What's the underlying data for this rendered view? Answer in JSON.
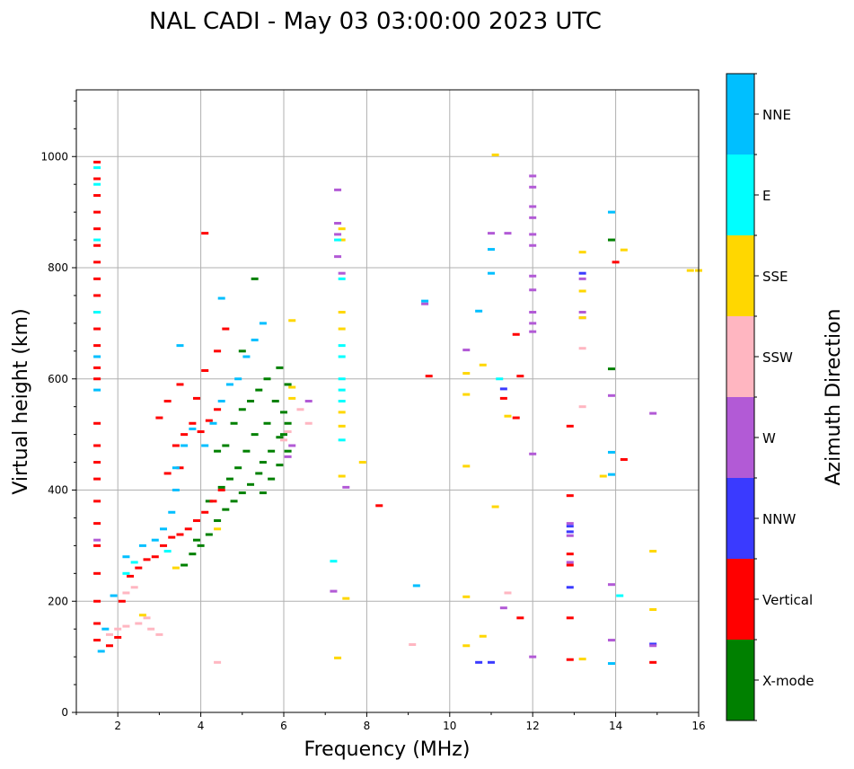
{
  "chart_data": {
    "type": "scatter",
    "title": "NAL CADI - May 03 03:00:00 2023 UTC",
    "xlabel": "Frequency (MHz)",
    "ylabel": "Virtual height (km)",
    "xlim": [
      1,
      16
    ],
    "ylim": [
      0,
      1120
    ],
    "xticks": [
      2,
      4,
      6,
      8,
      10,
      12,
      14,
      16
    ],
    "yticks": [
      0,
      200,
      400,
      600,
      800,
      1000
    ],
    "grid": true,
    "colorbar": {
      "label": "Azimuth Direction",
      "position": "right",
      "categories": [
        {
          "name": "X-mode",
          "color": "#008000"
        },
        {
          "name": "Vertical",
          "color": "#ff0000"
        },
        {
          "name": "NNW",
          "color": "#3a3aff"
        },
        {
          "name": "W",
          "color": "#b25ad6"
        },
        {
          "name": "SSW",
          "color": "#ffb6c1"
        },
        {
          "name": "SSE",
          "color": "#ffd700"
        },
        {
          "name": "E",
          "color": "#00ffff"
        },
        {
          "name": "NNE",
          "color": "#00bfff"
        }
      ]
    },
    "series": [
      {
        "name": "X-mode",
        "points": [
          [
            3.6,
            265
          ],
          [
            3.8,
            285
          ],
          [
            4.0,
            300
          ],
          [
            4.2,
            320
          ],
          [
            4.4,
            345
          ],
          [
            4.6,
            365
          ],
          [
            4.8,
            380
          ],
          [
            5.0,
            395
          ],
          [
            5.2,
            410
          ],
          [
            5.4,
            430
          ],
          [
            5.5,
            450
          ],
          [
            5.7,
            470
          ],
          [
            5.9,
            495
          ],
          [
            6.1,
            520
          ],
          [
            4.6,
            480
          ],
          [
            4.8,
            520
          ],
          [
            5.0,
            545
          ],
          [
            5.2,
            560
          ],
          [
            5.4,
            580
          ],
          [
            5.6,
            600
          ],
          [
            5.8,
            560
          ],
          [
            6.0,
            540
          ],
          [
            5.3,
            500
          ],
          [
            5.1,
            470
          ],
          [
            4.9,
            440
          ],
          [
            4.7,
            420
          ],
          [
            4.5,
            405
          ],
          [
            5.5,
            395
          ],
          [
            5.7,
            420
          ],
          [
            5.9,
            445
          ],
          [
            6.1,
            470
          ],
          [
            6.1,
            590
          ],
          [
            5.9,
            620
          ],
          [
            5.3,
            780
          ],
          [
            5.0,
            650
          ],
          [
            4.4,
            470
          ],
          [
            3.9,
            310
          ],
          [
            4.2,
            380
          ],
          [
            5.6,
            520
          ],
          [
            6.0,
            500
          ],
          [
            13.9,
            850
          ],
          [
            13.9,
            618
          ]
        ]
      },
      {
        "name": "Vertical",
        "points": [
          [
            1.5,
            990
          ],
          [
            1.5,
            960
          ],
          [
            1.5,
            930
          ],
          [
            1.5,
            900
          ],
          [
            1.5,
            870
          ],
          [
            1.5,
            840
          ],
          [
            1.5,
            810
          ],
          [
            1.5,
            780
          ],
          [
            1.5,
            750
          ],
          [
            1.5,
            720
          ],
          [
            1.5,
            690
          ],
          [
            1.5,
            660
          ],
          [
            1.5,
            620
          ],
          [
            1.5,
            600
          ],
          [
            1.5,
            520
          ],
          [
            1.5,
            480
          ],
          [
            1.5,
            450
          ],
          [
            1.5,
            420
          ],
          [
            1.5,
            380
          ],
          [
            1.5,
            340
          ],
          [
            1.5,
            300
          ],
          [
            1.5,
            250
          ],
          [
            1.5,
            200
          ],
          [
            1.5,
            160
          ],
          [
            1.5,
            130
          ],
          [
            1.8,
            120
          ],
          [
            2.0,
            135
          ],
          [
            2.1,
            200
          ],
          [
            2.3,
            245
          ],
          [
            2.5,
            260
          ],
          [
            2.7,
            275
          ],
          [
            2.9,
            280
          ],
          [
            3.1,
            300
          ],
          [
            3.3,
            315
          ],
          [
            3.5,
            320
          ],
          [
            3.7,
            330
          ],
          [
            3.9,
            345
          ],
          [
            4.1,
            360
          ],
          [
            4.3,
            380
          ],
          [
            4.5,
            400
          ],
          [
            3.4,
            480
          ],
          [
            3.6,
            500
          ],
          [
            3.8,
            520
          ],
          [
            4.0,
            505
          ],
          [
            4.2,
            525
          ],
          [
            4.4,
            545
          ],
          [
            3.2,
            560
          ],
          [
            3.0,
            530
          ],
          [
            3.5,
            590
          ],
          [
            3.9,
            565
          ],
          [
            4.1,
            615
          ],
          [
            4.4,
            650
          ],
          [
            4.6,
            690
          ],
          [
            4.1,
            862
          ],
          [
            3.2,
            430
          ],
          [
            3.5,
            440
          ],
          [
            9.5,
            605
          ],
          [
            11.6,
            680
          ],
          [
            11.7,
            605
          ],
          [
            11.3,
            565
          ],
          [
            11.6,
            530
          ],
          [
            11.7,
            170
          ],
          [
            12.9,
            515
          ],
          [
            12.9,
            390
          ],
          [
            12.9,
            285
          ],
          [
            12.9,
            265
          ],
          [
            12.9,
            170
          ],
          [
            12.9,
            95
          ],
          [
            14.0,
            810
          ],
          [
            14.2,
            455
          ],
          [
            14.9,
            90
          ],
          [
            8.3,
            372
          ]
        ]
      },
      {
        "name": "NNW",
        "points": [
          [
            12.9,
            335
          ],
          [
            12.9,
            325
          ],
          [
            12.9,
            225
          ],
          [
            13.2,
            790
          ],
          [
            10.7,
            90
          ],
          [
            11.0,
            90
          ],
          [
            11.3,
            582
          ],
          [
            14.9,
            123
          ]
        ]
      },
      {
        "name": "W",
        "points": [
          [
            1.5,
            310
          ],
          [
            6.1,
            460
          ],
          [
            6.2,
            480
          ],
          [
            6.6,
            560
          ],
          [
            7.3,
            940
          ],
          [
            7.3,
            880
          ],
          [
            7.3,
            860
          ],
          [
            7.3,
            820
          ],
          [
            7.4,
            790
          ],
          [
            7.5,
            405
          ],
          [
            7.2,
            218
          ],
          [
            9.4,
            735
          ],
          [
            10.4,
            652
          ],
          [
            11.0,
            862
          ],
          [
            11.4,
            862
          ],
          [
            11.3,
            188
          ],
          [
            12.0,
            965
          ],
          [
            12.0,
            945
          ],
          [
            12.0,
            910
          ],
          [
            12.0,
            890
          ],
          [
            12.0,
            860
          ],
          [
            12.0,
            840
          ],
          [
            12.0,
            785
          ],
          [
            12.0,
            760
          ],
          [
            12.0,
            720
          ],
          [
            12.0,
            700
          ],
          [
            12.0,
            685
          ],
          [
            12.0,
            465
          ],
          [
            12.0,
            100
          ],
          [
            12.9,
            340
          ],
          [
            12.9,
            318
          ],
          [
            12.9,
            270
          ],
          [
            13.2,
            780
          ],
          [
            13.2,
            720
          ],
          [
            13.2,
            710
          ],
          [
            13.9,
            570
          ],
          [
            13.9,
            230
          ],
          [
            13.9,
            130
          ],
          [
            14.9,
            538
          ],
          [
            14.9,
            120
          ]
        ]
      },
      {
        "name": "SSW",
        "points": [
          [
            1.8,
            140
          ],
          [
            2.0,
            150
          ],
          [
            2.2,
            155
          ],
          [
            2.5,
            160
          ],
          [
            2.7,
            170
          ],
          [
            2.8,
            150
          ],
          [
            3.0,
            140
          ],
          [
            2.4,
            225
          ],
          [
            2.2,
            215
          ],
          [
            4.4,
            90
          ],
          [
            6.0,
            490
          ],
          [
            6.1,
            505
          ],
          [
            6.4,
            545
          ],
          [
            6.6,
            520
          ],
          [
            9.1,
            122
          ],
          [
            11.4,
            215
          ],
          [
            13.2,
            655
          ],
          [
            13.2,
            550
          ]
        ]
      },
      {
        "name": "SSE",
        "points": [
          [
            2.6,
            175
          ],
          [
            3.4,
            260
          ],
          [
            4.4,
            330
          ],
          [
            6.2,
            705
          ],
          [
            6.2,
            585
          ],
          [
            6.2,
            565
          ],
          [
            7.4,
            870
          ],
          [
            7.4,
            850
          ],
          [
            7.4,
            720
          ],
          [
            7.4,
            690
          ],
          [
            7.4,
            540
          ],
          [
            7.4,
            515
          ],
          [
            7.4,
            425
          ],
          [
            7.5,
            205
          ],
          [
            7.3,
            98
          ],
          [
            7.9,
            450
          ],
          [
            10.4,
            610
          ],
          [
            10.4,
            572
          ],
          [
            10.4,
            443
          ],
          [
            10.4,
            208
          ],
          [
            10.4,
            120
          ],
          [
            10.8,
            625
          ],
          [
            10.8,
            137
          ],
          [
            11.1,
            1003
          ],
          [
            11.1,
            370
          ],
          [
            11.4,
            533
          ],
          [
            13.2,
            828
          ],
          [
            13.2,
            758
          ],
          [
            13.2,
            710
          ],
          [
            13.2,
            96
          ],
          [
            13.7,
            425
          ],
          [
            14.2,
            832
          ],
          [
            14.9,
            290
          ],
          [
            14.9,
            185
          ],
          [
            15.8,
            795
          ],
          [
            16.0,
            795
          ]
        ]
      },
      {
        "name": "E",
        "points": [
          [
            1.5,
            980
          ],
          [
            1.5,
            950
          ],
          [
            1.5,
            850
          ],
          [
            1.5,
            720
          ],
          [
            2.2,
            250
          ],
          [
            2.4,
            270
          ],
          [
            3.2,
            290
          ],
          [
            7.3,
            850
          ],
          [
            7.4,
            780
          ],
          [
            7.4,
            660
          ],
          [
            7.4,
            640
          ],
          [
            7.4,
            600
          ],
          [
            7.4,
            580
          ],
          [
            7.4,
            560
          ],
          [
            7.4,
            490
          ],
          [
            7.2,
            272
          ],
          [
            11.2,
            600
          ],
          [
            14.1,
            210
          ]
        ]
      },
      {
        "name": "NNE",
        "points": [
          [
            1.5,
            640
          ],
          [
            1.5,
            580
          ],
          [
            1.6,
            110
          ],
          [
            1.7,
            150
          ],
          [
            1.9,
            210
          ],
          [
            2.2,
            280
          ],
          [
            2.6,
            300
          ],
          [
            2.9,
            310
          ],
          [
            3.1,
            330
          ],
          [
            3.3,
            360
          ],
          [
            3.4,
            400
          ],
          [
            3.4,
            440
          ],
          [
            3.6,
            480
          ],
          [
            3.8,
            510
          ],
          [
            4.3,
            520
          ],
          [
            4.5,
            560
          ],
          [
            4.7,
            590
          ],
          [
            4.9,
            600
          ],
          [
            5.1,
            640
          ],
          [
            5.3,
            670
          ],
          [
            5.5,
            700
          ],
          [
            4.1,
            480
          ],
          [
            3.5,
            660
          ],
          [
            4.5,
            745
          ],
          [
            9.2,
            228
          ],
          [
            9.4,
            740
          ],
          [
            10.7,
            722
          ],
          [
            11.0,
            833
          ],
          [
            11.0,
            790
          ],
          [
            13.9,
            900
          ],
          [
            13.9,
            468
          ],
          [
            13.9,
            428
          ],
          [
            13.9,
            88
          ]
        ]
      }
    ]
  }
}
